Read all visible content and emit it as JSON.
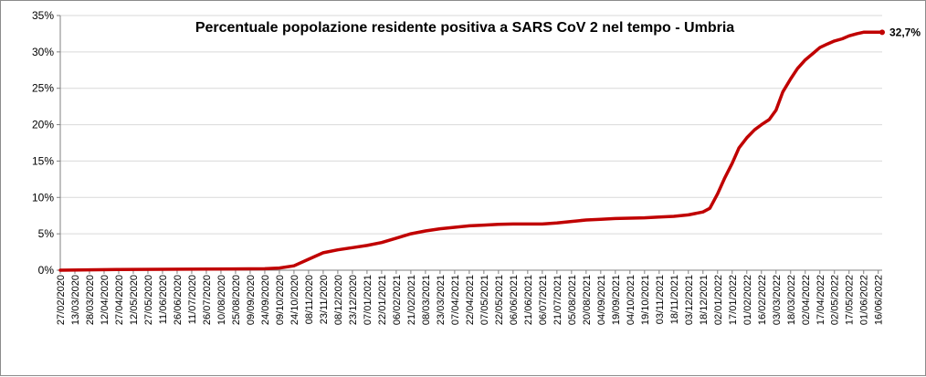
{
  "chart_data": {
    "type": "line",
    "title": "Percentuale popolazione residente positiva a SARS CoV 2 nel tempo - Umbria",
    "xlabel": "",
    "ylabel": "",
    "ylim": [
      0,
      35
    ],
    "y_ticks": [
      "0%",
      "5%",
      "10%",
      "15%",
      "20%",
      "25%",
      "30%",
      "35%"
    ],
    "x_ticks": [
      "27/02/2020",
      "13/03/2020",
      "28/03/2020",
      "12/04/2020",
      "27/04/2020",
      "12/05/2020",
      "27/05/2020",
      "11/06/2020",
      "26/06/2020",
      "11/07/2020",
      "26/07/2020",
      "10/08/2020",
      "25/08/2020",
      "09/09/2020",
      "24/09/2020",
      "09/10/2020",
      "24/10/2020",
      "08/11/2020",
      "23/11/2020",
      "08/12/2020",
      "23/12/2020",
      "07/01/2021",
      "22/01/2021",
      "06/02/2021",
      "21/02/2021",
      "08/03/2021",
      "23/03/2021",
      "07/04/2021",
      "22/04/2021",
      "07/05/2021",
      "22/05/2021",
      "06/06/2021",
      "21/06/2021",
      "06/07/2021",
      "21/07/2021",
      "05/08/2021",
      "20/08/2021",
      "04/09/2021",
      "19/09/2021",
      "04/10/2021",
      "19/10/2021",
      "03/11/2021",
      "18/11/2021",
      "03/12/2021",
      "18/12/2021",
      "02/01/2022",
      "17/01/2022",
      "01/02/2022",
      "16/02/2022",
      "03/03/2022",
      "18/03/2022",
      "02/04/2022",
      "17/04/2022",
      "02/05/2022",
      "17/05/2022",
      "01/06/2022",
      "16/06/2022"
    ],
    "grid": "horizontal",
    "legend": "none",
    "series_color": "#c00000",
    "series": [
      {
        "x": [
          "27/02/2020",
          "27/04/2020",
          "27/07/2020",
          "24/09/2020",
          "09/10/2020",
          "24/10/2020",
          "08/11/2020",
          "23/11/2020",
          "08/12/2020",
          "23/12/2020",
          "07/01/2021",
          "22/01/2021",
          "06/02/2021",
          "21/02/2021",
          "08/03/2021",
          "23/03/2021",
          "07/04/2021",
          "22/04/2021",
          "07/05/2021",
          "22/05/2021",
          "06/06/2021",
          "21/06/2021",
          "06/07/2021",
          "21/07/2021",
          "05/08/2021",
          "20/08/2021",
          "04/09/2021",
          "19/09/2021",
          "04/10/2021",
          "19/10/2021",
          "03/11/2021",
          "18/11/2021",
          "03/12/2021",
          "18/12/2021",
          "25/12/2021",
          "02/01/2022",
          "09/01/2022",
          "17/01/2022",
          "24/01/2022",
          "01/02/2022",
          "09/02/2022",
          "16/02/2022",
          "24/02/2022",
          "03/03/2022",
          "10/03/2022",
          "18/03/2022",
          "25/03/2022",
          "02/04/2022",
          "10/04/2022",
          "17/04/2022",
          "25/04/2022",
          "02/05/2022",
          "10/05/2022",
          "17/05/2022",
          "25/05/2022",
          "01/06/2022",
          "09/06/2022",
          "16/06/2022",
          "20/06/2022"
        ],
        "values": [
          0.0,
          0.1,
          0.15,
          0.2,
          0.3,
          0.6,
          1.5,
          2.4,
          2.8,
          3.1,
          3.4,
          3.8,
          4.4,
          5.0,
          5.4,
          5.7,
          5.9,
          6.1,
          6.2,
          6.3,
          6.35,
          6.35,
          6.35,
          6.5,
          6.7,
          6.9,
          7.0,
          7.1,
          7.15,
          7.2,
          7.3,
          7.4,
          7.6,
          8.0,
          8.5,
          10.5,
          12.6,
          14.7,
          16.8,
          18.2,
          19.3,
          20.0,
          20.7,
          22.0,
          24.5,
          26.3,
          27.7,
          28.9,
          29.8,
          30.6,
          31.1,
          31.5,
          31.8,
          32.2,
          32.5,
          32.7,
          32.7,
          32.7,
          32.7
        ],
        "last_label": "32,7%"
      }
    ]
  }
}
